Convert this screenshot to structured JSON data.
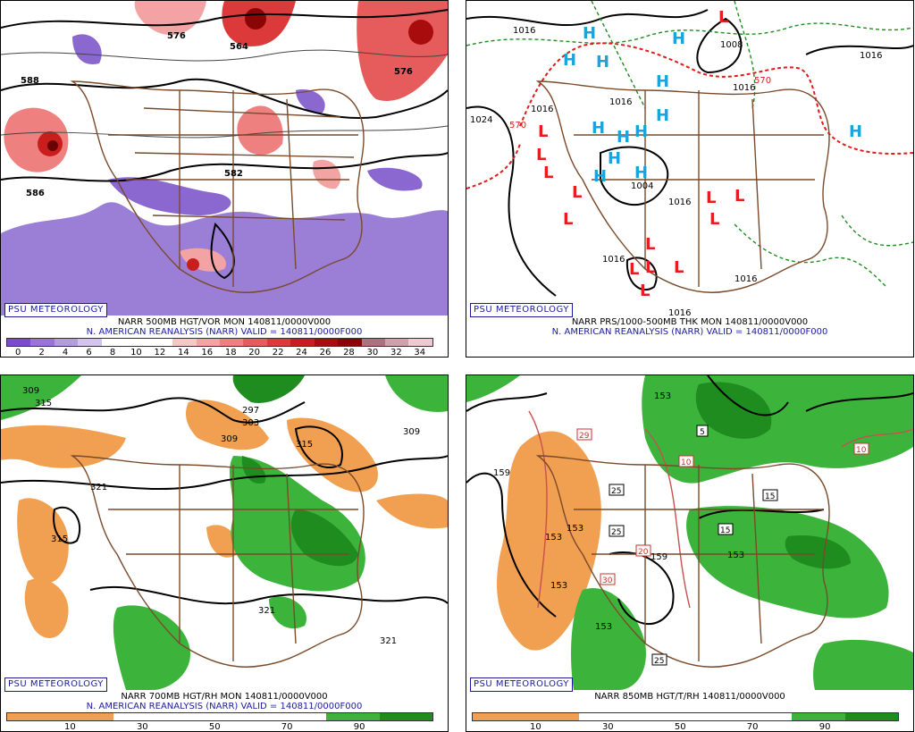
{
  "panels": {
    "p1": {
      "title_line1": "NARR 500MB HGT/VOR MON 140811/0000V000",
      "title_line2": "N. AMERICAN REANALYSIS (NARR) VALID = 140811/0000F000",
      "brand": "PSU METEOROLOGY",
      "contour_labels": [
        "588",
        "576",
        "564",
        "576",
        "588",
        "586",
        "582"
      ],
      "colorbar_labels": [
        "0",
        "2",
        "4",
        "6",
        "8",
        "10",
        "12",
        "14",
        "16",
        "18",
        "20",
        "22",
        "24",
        "26",
        "28",
        "30",
        "32",
        "34"
      ],
      "colorbar_colors": [
        "#7a4ccc",
        "#9a73d6",
        "#b49ce0",
        "#d2c4ec",
        "#ffffff",
        "#ffffff",
        "#ffffff",
        "#f7c6c6",
        "#f3a3a3",
        "#ee8080",
        "#e65c5c",
        "#dc3a3a",
        "#c81e1e",
        "#a80c0c",
        "#8a0606",
        "#b07080",
        "#d2a0aa",
        "#f0c8d0"
      ]
    },
    "p2": {
      "title_line1": "NARR PRS/1000-500MB THK MON 140811/0000V000",
      "title_line2": "N. AMERICAN REANALYSIS (NARR) VALID = 140811/0000F000",
      "brand": "PSU METEOROLOGY",
      "pressure_labels": [
        "1016",
        "1008",
        "1016",
        "1016",
        "1024",
        "1016",
        "1004",
        "1016",
        "1016",
        "1016",
        "1016",
        "1016"
      ],
      "thickness_labels": [
        "570",
        "570"
      ],
      "high_symbol": "H",
      "low_symbol": "L",
      "colors": {
        "high": "#1ca3dc",
        "low": "#e81c1c",
        "isobar": "#000000",
        "thickness": "#1e8c1e",
        "thickness_570": "#dd1c1c"
      }
    },
    "p3": {
      "title_line1": "NARR 700MB HGT/RH MON 140811/0000V000",
      "title_line2": "N. AMERICAN REANALYSIS (NARR) VALID = 140811/0000F000",
      "brand": "PSU METEOROLOGY",
      "contour_labels": [
        "309",
        "315",
        "303",
        "297",
        "309",
        "315",
        "309",
        "321",
        "315",
        "321",
        "321"
      ],
      "colorbar_labels": [
        "10",
        "30",
        "50",
        "70",
        "90"
      ],
      "colors": {
        "dry": "#f0a050",
        "moist": "#3cb43c",
        "very_moist": "#1e8c1e"
      }
    },
    "p4": {
      "title_line1": "NARR 850MB HGT/T/RH 140811/0000V000",
      "brand": "PSU METEOROLOGY",
      "contour_labels": [
        "153",
        "159",
        "153",
        "153",
        "153",
        "159",
        "153",
        "153"
      ],
      "temp_boxes": [
        "5",
        "25",
        "25",
        "15",
        "15",
        "25"
      ],
      "temp_boxes_red": [
        "29",
        "10",
        "20",
        "30",
        "10",
        "10"
      ],
      "colorbar_labels": [
        "10",
        "30",
        "50",
        "70",
        "90"
      ],
      "colors": {
        "dry": "#f0a050",
        "moist": "#3cb43c",
        "very_moist": "#1e8c1e",
        "temp": "#c85050"
      }
    }
  }
}
